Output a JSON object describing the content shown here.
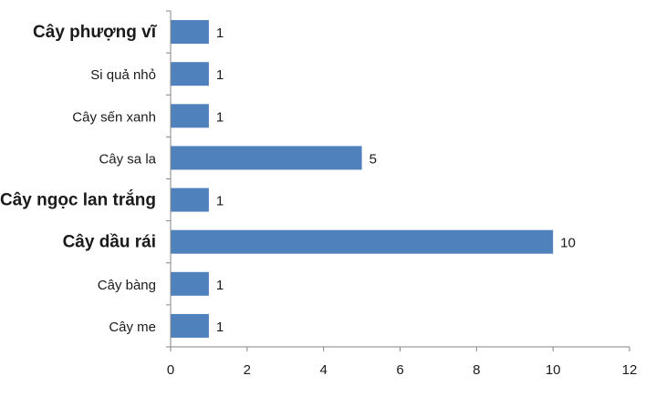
{
  "chart_data": {
    "type": "bar",
    "orientation": "horizontal",
    "categories": [
      "Cây phượng vĩ",
      "Si quả nhỏ",
      "Cây sến xanh",
      "Cây sa la",
      "Cây ngọc lan trắng",
      "Cây dầu rái",
      "Cây bàng",
      "Cây me"
    ],
    "values": [
      1,
      1,
      1,
      5,
      1,
      10,
      1,
      1
    ],
    "emphasized_categories": [
      "Cây phượng vĩ",
      "Cây ngọc lan trắng",
      "Cây dầu rái"
    ],
    "xlim": [
      0,
      12
    ],
    "xticks": [
      0,
      2,
      4,
      6,
      8,
      10,
      12
    ],
    "title": "",
    "xlabel": "",
    "ylabel": "",
    "grid": false,
    "legend": "none",
    "data_labels": true,
    "colors": {
      "bar": "#4f81bd",
      "axis": "#868686",
      "text": "#1a1a1a"
    }
  }
}
